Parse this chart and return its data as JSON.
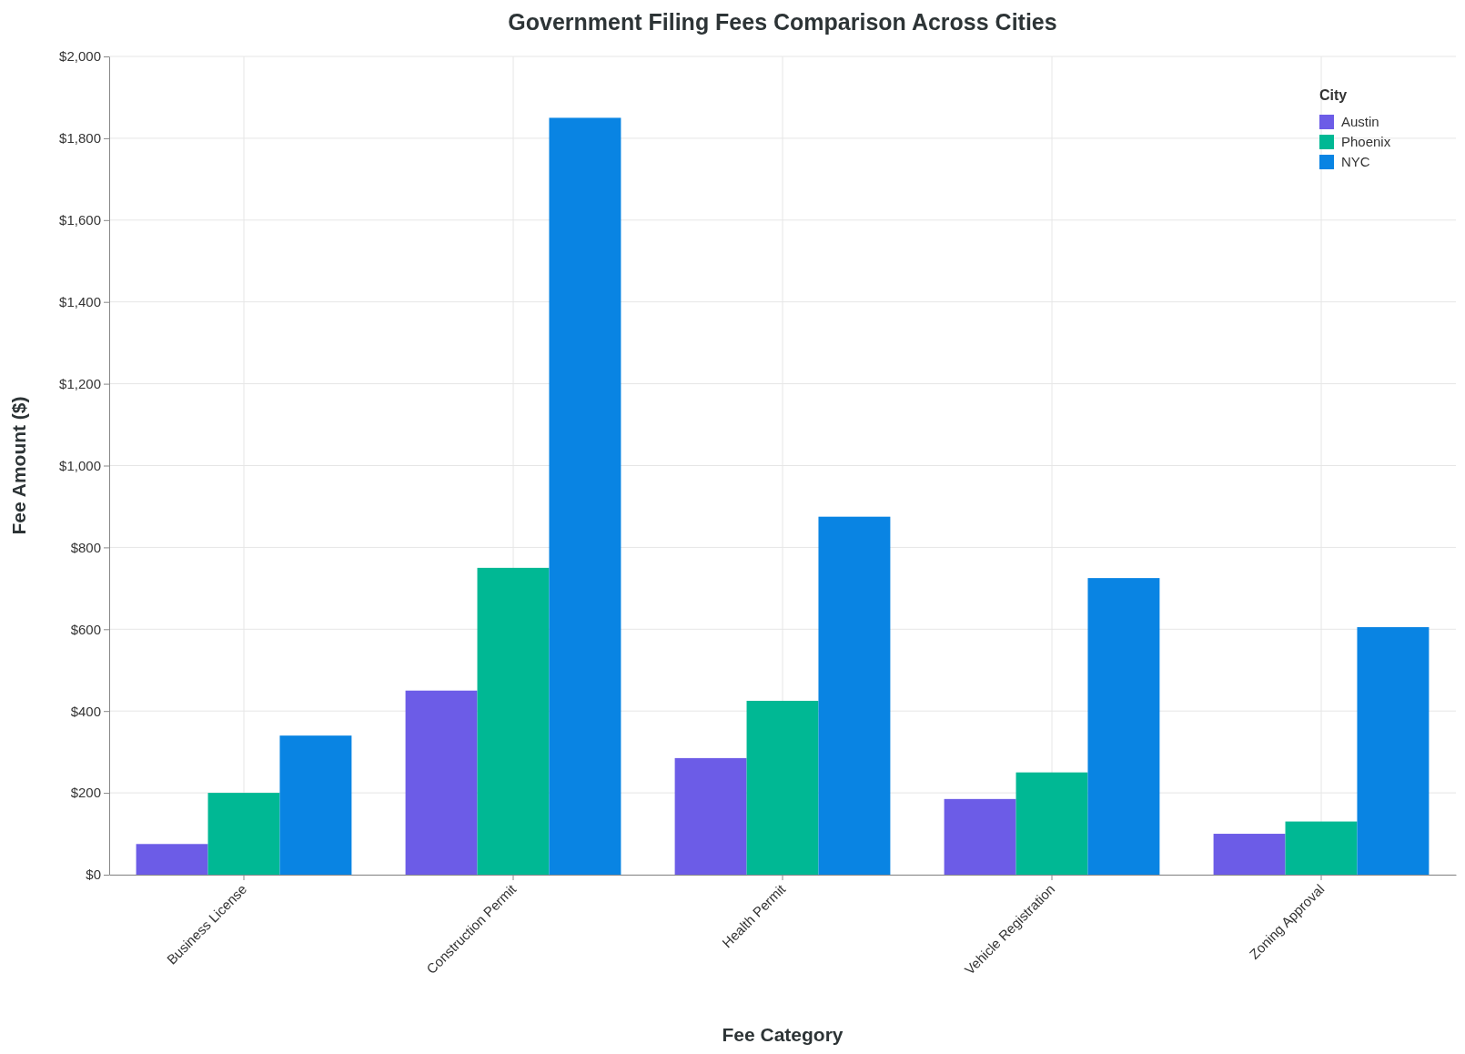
{
  "chart_data": {
    "type": "bar",
    "title": "Government Filing Fees Comparison Across Cities",
    "xlabel": "Fee Category",
    "ylabel": "Fee Amount ($)",
    "legend_title": "City",
    "categories": [
      "Business License",
      "Construction Permit",
      "Health Permit",
      "Vehicle Registration",
      "Zoning Approval"
    ],
    "series": [
      {
        "name": "Austin",
        "color": "#6c5ce7",
        "values": [
          75,
          450,
          285,
          185,
          100
        ]
      },
      {
        "name": "Phoenix",
        "color": "#00b894",
        "values": [
          200,
          750,
          425,
          250,
          130
        ]
      },
      {
        "name": "NYC",
        "color": "#0984e3",
        "values": [
          340,
          1850,
          875,
          725,
          605
        ]
      }
    ],
    "ylim": [
      0,
      2000
    ],
    "yticks": [
      {
        "value": 0,
        "label": "$0"
      },
      {
        "value": 200,
        "label": "$200"
      },
      {
        "value": 400,
        "label": "$400"
      },
      {
        "value": 600,
        "label": "$600"
      },
      {
        "value": 800,
        "label": "$800"
      },
      {
        "value": 1000,
        "label": "$1,000"
      },
      {
        "value": 1200,
        "label": "$1,200"
      },
      {
        "value": 1400,
        "label": "$1,400"
      },
      {
        "value": 1600,
        "label": "$1,600"
      },
      {
        "value": 1800,
        "label": "$1,800"
      },
      {
        "value": 2000,
        "label": "$2,000"
      }
    ],
    "grid": true,
    "legend": "top right"
  }
}
